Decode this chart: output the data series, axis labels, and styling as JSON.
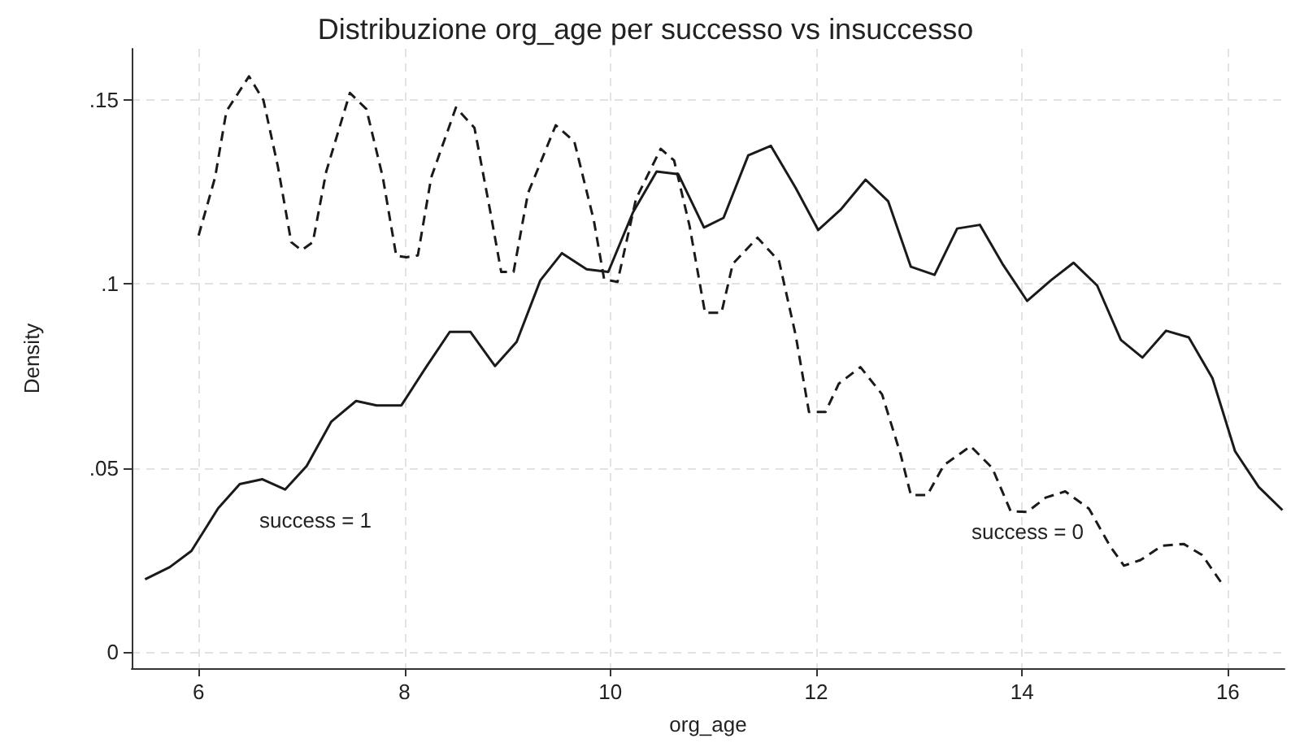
{
  "chart_data": {
    "type": "line",
    "title": "Distribuzione org_age per successo vs insuccesso",
    "xlabel": "org_age",
    "ylabel": "Density",
    "xlim": [
      5.35,
      16.55
    ],
    "xticks": [
      6,
      8,
      10,
      12,
      14,
      16
    ],
    "ylim": [
      -0.0045,
      0.164
    ],
    "yticks": [
      0,
      {
        "value": 0.05,
        "label": ".05"
      },
      {
        "value": 0.1,
        "label": ".1"
      },
      {
        "value": 0.15,
        "label": ".15"
      }
    ],
    "grid": true,
    "marker": "none",
    "series": [
      {
        "color": "#1a1a1a",
        "line_style": "solid",
        "x": [
          5.48,
          5.72,
          5.93,
          6.19,
          6.4,
          6.62,
          6.84,
          7.05,
          7.29,
          7.53,
          7.73,
          7.97,
          8.21,
          8.44,
          8.64,
          8.88,
          9.09,
          9.32,
          9.53,
          9.77,
          9.98,
          10.22,
          10.45,
          10.66,
          10.91,
          11.1,
          11.34,
          11.56,
          11.8,
          12.02,
          12.24,
          12.48,
          12.7,
          12.92,
          13.15,
          13.37,
          13.59,
          13.81,
          14.05,
          14.28,
          14.5,
          14.73,
          14.96,
          15.17,
          15.4,
          15.62,
          15.85,
          16.07,
          16.3,
          16.53
        ],
        "values": [
          0.0197,
          0.023,
          0.0274,
          0.039,
          0.0456,
          0.0469,
          0.0441,
          0.0505,
          0.0626,
          0.0682,
          0.067,
          0.067,
          0.0774,
          0.087,
          0.087,
          0.0777,
          0.0843,
          0.101,
          0.1084,
          0.104,
          0.1033,
          0.1195,
          0.1306,
          0.1299,
          0.1154,
          0.118,
          0.135,
          0.1376,
          0.1262,
          0.1147,
          0.1203,
          0.1284,
          0.1225,
          0.1047,
          0.1025,
          0.1151,
          0.1161,
          0.1055,
          0.0954,
          0.101,
          0.1058,
          0.0996,
          0.0848,
          0.08,
          0.0873,
          0.0855,
          0.0744,
          0.0545,
          0.0448,
          0.0385
        ]
      },
      {
        "color": "#1a1a1a",
        "line_style": "dashed",
        "x": [
          6.0,
          6.16,
          6.27,
          6.49,
          6.63,
          6.77,
          6.9,
          7.0,
          7.11,
          7.24,
          7.47,
          7.63,
          7.79,
          7.92,
          8.02,
          8.13,
          8.26,
          8.5,
          8.68,
          8.83,
          8.94,
          9.06,
          9.2,
          9.47,
          9.65,
          9.84,
          9.94,
          10.07,
          10.25,
          10.49,
          10.62,
          10.77,
          10.92,
          11.08,
          11.19,
          11.43,
          11.64,
          11.8,
          11.93,
          12.09,
          12.22,
          12.43,
          12.64,
          12.82,
          12.92,
          13.08,
          13.24,
          13.5,
          13.71,
          13.89,
          14.05,
          14.23,
          14.42,
          14.65,
          14.86,
          14.99,
          15.15,
          15.36,
          15.57,
          15.75,
          15.95
        ],
        "values": [
          0.1132,
          0.129,
          0.147,
          0.1565,
          0.15,
          0.132,
          0.1114,
          0.1092,
          0.1114,
          0.1306,
          0.152,
          0.1476,
          0.129,
          0.1077,
          0.1073,
          0.1078,
          0.129,
          0.148,
          0.1425,
          0.1203,
          0.1033,
          0.1033,
          0.1247,
          0.1432,
          0.1388,
          0.1173,
          0.1013,
          0.1006,
          0.1232,
          0.1368,
          0.1336,
          0.1158,
          0.0922,
          0.0922,
          0.1055,
          0.1126,
          0.1062,
          0.0862,
          0.0652,
          0.0652,
          0.0729,
          0.0774,
          0.07,
          0.0537,
          0.0426,
          0.0426,
          0.0507,
          0.0559,
          0.05,
          0.0382,
          0.038,
          0.0419,
          0.0436,
          0.0389,
          0.0285,
          0.0234,
          0.0249,
          0.0288,
          0.0293,
          0.0263,
          0.0182
        ]
      }
    ],
    "annotations": [
      "success = 1",
      "success = 0"
    ]
  }
}
